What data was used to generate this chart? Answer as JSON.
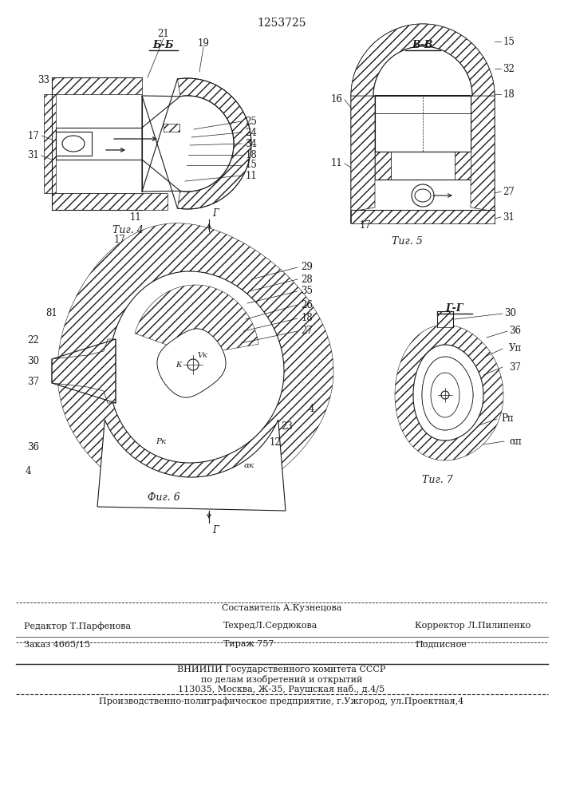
{
  "title_number": "1253725",
  "bg_color": "#ffffff",
  "line_color": "#1a1a1a",
  "fig4_label": "Τиг. 4",
  "fig5_label": "Τиг. 5",
  "fig6_label": "Τиг. 6",
  "fig7_label": "Τиг. 7",
  "section_b": "Б-Б",
  "section_v": "В-В",
  "section_g": "Г-Г",
  "footer_line1_center": "Составитель А.Кузнецова",
  "footer_line2_left": "Редактор Т.Парфенова",
  "footer_line2_center": "ТехредЛ.Сердюкова",
  "footer_line2_right": "Корректор Л.Пилипенко",
  "footer_line3_left": "Заказ 4665/15",
  "footer_line3_center": "Тираж 757",
  "footer_line3_right": "Подписное",
  "footer_line4": "ВНИИПИ Государственного комитета СССР",
  "footer_line5": "по делам изобретений и открытий",
  "footer_line6": "113035, Москва, Ж-35, Раушская наб., д.4/5",
  "footer_line7": "Производственно-полиграфическое предприятие, г.Ужгород, ул.Проектная,4"
}
